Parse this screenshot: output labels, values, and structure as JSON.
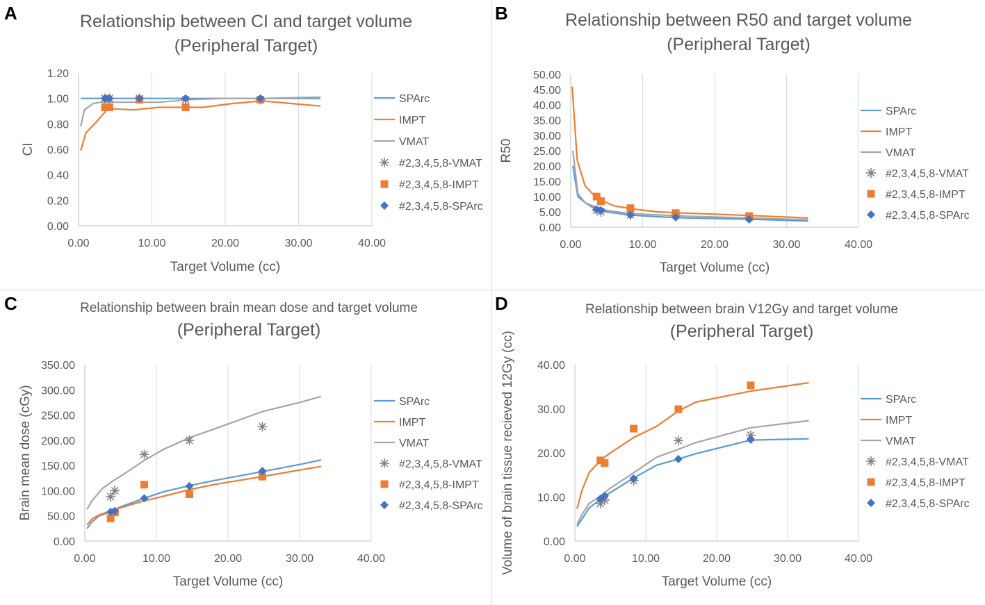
{
  "colors": {
    "spare": "#5b9bd5",
    "impt": "#ed7d31",
    "vmat": "#a5a5a5",
    "marker_vmat": "#808080",
    "marker_impt": "#ed7d31",
    "marker_spare": "#4472c4",
    "grid": "#d9d9d9",
    "axis": "#bfbfbf",
    "text": "#595959",
    "border": "#d9d9d9"
  },
  "chart_data": [
    {
      "id": "A",
      "type": "line",
      "panel_label": "A",
      "title": "Relationship between CI and target volume",
      "subtitle": "(Peripheral Target)",
      "xlabel": "Target Volume (cc)",
      "ylabel": "CI",
      "xlim": [
        0,
        40
      ],
      "ylim": [
        0,
        1.2
      ],
      "xticks": [
        0,
        10,
        20,
        30,
        40
      ],
      "xtick_labels": [
        "0.00",
        "10.00",
        "20.00",
        "30.00",
        "40.00"
      ],
      "yticks": [
        0,
        0.2,
        0.4,
        0.6,
        0.8,
        1.0,
        1.2
      ],
      "ytick_labels": [
        "0.00",
        "0.20",
        "0.40",
        "0.60",
        "0.80",
        "1.00",
        "1.20"
      ],
      "grid": "vertical",
      "series": [
        {
          "name": "SPArc",
          "kind": "line",
          "color": "spare",
          "points": [
            [
              0.3,
              1.0
            ],
            [
              2,
              1.0
            ],
            [
              4,
              1.0
            ],
            [
              8,
              1.0
            ],
            [
              14.5,
              1.0
            ],
            [
              20,
              1.0
            ],
            [
              25,
              1.0
            ],
            [
              33,
              1.0
            ]
          ]
        },
        {
          "name": "IMPT",
          "kind": "line",
          "color": "impt",
          "points": [
            [
              0.3,
              0.59
            ],
            [
              1,
              0.73
            ],
            [
              2.5,
              0.82
            ],
            [
              4,
              0.92
            ],
            [
              7.5,
              0.91
            ],
            [
              11,
              0.93
            ],
            [
              14.5,
              0.93
            ],
            [
              17,
              0.93
            ],
            [
              21,
              0.96
            ],
            [
              25,
              0.98
            ],
            [
              29,
              0.96
            ],
            [
              33,
              0.94
            ]
          ]
        },
        {
          "name": "VMAT",
          "kind": "line",
          "color": "vmat",
          "points": [
            [
              0.3,
              0.78
            ],
            [
              0.8,
              0.91
            ],
            [
              2,
              0.96
            ],
            [
              3,
              0.97
            ],
            [
              5,
              0.97
            ],
            [
              8,
              0.97
            ],
            [
              11,
              0.97
            ],
            [
              15,
              0.99
            ],
            [
              20,
              1.0
            ],
            [
              25,
              1.0
            ],
            [
              33,
              1.01
            ]
          ]
        },
        {
          "name": "#2,3,4,5,8-VMAT",
          "kind": "star",
          "color": "marker_vmat",
          "points": [
            [
              3.6,
              1.0
            ],
            [
              4.2,
              1.0
            ],
            [
              8.3,
              1.0
            ],
            [
              14.6,
              0.99
            ],
            [
              24.8,
              0.99
            ]
          ]
        },
        {
          "name": "#2,3,4,5,8-IMPT",
          "kind": "square",
          "color": "marker_impt",
          "points": [
            [
              3.6,
              0.93
            ],
            [
              4.2,
              0.93
            ],
            [
              8.3,
              0.99
            ],
            [
              14.6,
              0.93
            ],
            [
              24.8,
              0.99
            ]
          ]
        },
        {
          "name": "#2,3,4,5,8-SPArc",
          "kind": "diamond",
          "color": "marker_spare",
          "points": [
            [
              3.6,
              1.0
            ],
            [
              4.2,
              1.0
            ],
            [
              8.3,
              1.0
            ],
            [
              14.6,
              1.0
            ],
            [
              24.8,
              1.0
            ]
          ]
        }
      ]
    },
    {
      "id": "B",
      "type": "line",
      "panel_label": "B",
      "title": "Relationship between R50 and target volume",
      "subtitle": "(Peripheral Target)",
      "xlabel": "Target Volume (cc)",
      "ylabel": "R50",
      "xlim": [
        0,
        40
      ],
      "ylim": [
        0,
        50
      ],
      "xticks": [
        0,
        10,
        20,
        30,
        40
      ],
      "xtick_labels": [
        "0.00",
        "10.00",
        "20.00",
        "30.00",
        "40.00"
      ],
      "yticks": [
        0,
        5,
        10,
        15,
        20,
        25,
        30,
        35,
        40,
        45,
        50
      ],
      "ytick_labels": [
        "0.00",
        "5.00",
        "10.00",
        "15.00",
        "20.00",
        "25.00",
        "30.00",
        "35.00",
        "40.00",
        "45.00",
        "50.00"
      ],
      "grid": "vertical",
      "series": [
        {
          "name": "SPArc",
          "kind": "line",
          "color": "spare",
          "points": [
            [
              0.3,
              20
            ],
            [
              1,
              10
            ],
            [
              2,
              8
            ],
            [
              3,
              6.5
            ],
            [
              5,
              5
            ],
            [
              8,
              4
            ],
            [
              12,
              3.4
            ],
            [
              16,
              3
            ],
            [
              25,
              2.6
            ],
            [
              33,
              2.0
            ]
          ]
        },
        {
          "name": "IMPT",
          "kind": "line",
          "color": "impt",
          "points": [
            [
              0.2,
              46
            ],
            [
              0.9,
              22
            ],
            [
              2,
              13.5
            ],
            [
              3,
              11
            ],
            [
              4,
              9
            ],
            [
              6,
              7
            ],
            [
              8.5,
              6
            ],
            [
              12,
              5
            ],
            [
              16,
              4.6
            ],
            [
              25,
              3.8
            ],
            [
              33,
              3.0
            ]
          ]
        },
        {
          "name": "VMAT",
          "kind": "line",
          "color": "vmat",
          "points": [
            [
              0.3,
              25
            ],
            [
              1,
              11
            ],
            [
              2,
              8
            ],
            [
              3,
              7
            ],
            [
              5,
              5.5
            ],
            [
              8,
              4.5
            ],
            [
              12,
              4
            ],
            [
              16,
              3.6
            ],
            [
              25,
              3.0
            ],
            [
              33,
              2.4
            ]
          ]
        },
        {
          "name": "#2,3,4,5,8-VMAT",
          "kind": "star",
          "color": "marker_vmat",
          "points": [
            [
              3.6,
              5.5
            ],
            [
              4.2,
              5.0
            ],
            [
              8.3,
              4.0
            ],
            [
              14.6,
              4.0
            ],
            [
              24.8,
              3.2
            ]
          ]
        },
        {
          "name": "#2,3,4,5,8-IMPT",
          "kind": "square",
          "color": "marker_impt",
          "points": [
            [
              3.6,
              10.0
            ],
            [
              4.2,
              8.5
            ],
            [
              8.3,
              6.2
            ],
            [
              14.6,
              4.6
            ],
            [
              24.8,
              3.6
            ]
          ]
        },
        {
          "name": "#2,3,4,5,8-SPArc",
          "kind": "diamond",
          "color": "marker_spare",
          "points": [
            [
              3.6,
              5.8
            ],
            [
              4.2,
              5.5
            ],
            [
              8.3,
              4.0
            ],
            [
              14.6,
              3.2
            ],
            [
              24.8,
              2.5
            ]
          ]
        }
      ]
    },
    {
      "id": "C",
      "type": "line",
      "panel_label": "C",
      "title": "Relationship between brain mean dose and target volume",
      "subtitle": "(Peripheral Target)",
      "xlabel": "Target Volume (cc)",
      "ylabel": "Brain mean dose (cGy)",
      "xlim": [
        0,
        40
      ],
      "ylim": [
        0,
        350
      ],
      "xticks": [
        0,
        10,
        20,
        30,
        40
      ],
      "xtick_labels": [
        "0.00",
        "10.00",
        "20.00",
        "30.00",
        "40.00"
      ],
      "yticks": [
        0,
        50,
        100,
        150,
        200,
        250,
        300,
        350
      ],
      "ytick_labels": [
        "0.00",
        "50.00",
        "100.00",
        "150.00",
        "200.00",
        "250.00",
        "300.00",
        "350.00"
      ],
      "grid": "vertical",
      "series": [
        {
          "name": "SPArc",
          "kind": "line",
          "color": "spare",
          "points": [
            [
              0.3,
              25
            ],
            [
              1,
              38
            ],
            [
              2,
              50
            ],
            [
              3.6,
              58
            ],
            [
              5,
              68
            ],
            [
              8.3,
              85
            ],
            [
              11,
              98
            ],
            [
              14.6,
              110
            ],
            [
              18,
              120
            ],
            [
              24.8,
              138
            ],
            [
              30,
              152
            ],
            [
              33,
              161
            ]
          ]
        },
        {
          "name": "IMPT",
          "kind": "line",
          "color": "impt",
          "points": [
            [
              0.3,
              32
            ],
            [
              1,
              44
            ],
            [
              2,
              52
            ],
            [
              3.6,
              60
            ],
            [
              5,
              66
            ],
            [
              8.3,
              80
            ],
            [
              11,
              89
            ],
            [
              14.6,
              102
            ],
            [
              18,
              112
            ],
            [
              24.8,
              128
            ],
            [
              30,
              141
            ],
            [
              33,
              148
            ]
          ]
        },
        {
          "name": "VMAT",
          "kind": "line",
          "color": "vmat",
          "points": [
            [
              0.3,
              63
            ],
            [
              1,
              80
            ],
            [
              2.5,
              105
            ],
            [
              4,
              120
            ],
            [
              6,
              138
            ],
            [
              8.3,
              160
            ],
            [
              11,
              182
            ],
            [
              14.6,
              205
            ],
            [
              18,
              222
            ],
            [
              24.8,
              257
            ],
            [
              30,
              275
            ],
            [
              33,
              287
            ]
          ]
        },
        {
          "name": "#2,3,4,5,8-VMAT",
          "kind": "star",
          "color": "marker_vmat",
          "points": [
            [
              3.6,
              88
            ],
            [
              4.2,
              100
            ],
            [
              8.3,
              172
            ],
            [
              14.6,
              200
            ],
            [
              24.8,
              227
            ]
          ]
        },
        {
          "name": "#2,3,4,5,8-IMPT",
          "kind": "square",
          "color": "marker_impt",
          "points": [
            [
              3.6,
              45
            ],
            [
              4.2,
              57
            ],
            [
              8.3,
              112
            ],
            [
              14.6,
              93
            ],
            [
              24.8,
              128
            ]
          ]
        },
        {
          "name": "#2,3,4,5,8-SPArc",
          "kind": "diamond",
          "color": "marker_spare",
          "points": [
            [
              3.6,
              58
            ],
            [
              4.2,
              60
            ],
            [
              8.3,
              85
            ],
            [
              14.6,
              109
            ],
            [
              24.8,
              139
            ]
          ]
        }
      ]
    },
    {
      "id": "D",
      "type": "line",
      "panel_label": "D",
      "title": "Relationship between brain V12Gy and target volume",
      "subtitle": "(Peripheral Target)",
      "xlabel": "Target Volume (cc)",
      "ylabel": "Volume of brain tissue recieved 12Gy (cc)",
      "xlim": [
        0,
        40
      ],
      "ylim": [
        0,
        40
      ],
      "xticks": [
        0,
        10,
        20,
        30,
        40
      ],
      "xtick_labels": [
        "0.00",
        "10.00",
        "20.00",
        "30.00",
        "40.00"
      ],
      "yticks": [
        0,
        10,
        20,
        30,
        40
      ],
      "ytick_labels": [
        "0.00",
        "10.00",
        "20.00",
        "30.00",
        "40.00"
      ],
      "grid": "vertical",
      "series": [
        {
          "name": "SPArc",
          "kind": "line",
          "color": "spare",
          "points": [
            [
              0.3,
              3.3
            ],
            [
              1,
              5
            ],
            [
              2,
              7.5
            ],
            [
              3.6,
              9.5
            ],
            [
              5,
              11
            ],
            [
              8.3,
              14.3
            ],
            [
              11.5,
              17.2
            ],
            [
              14.6,
              18.6
            ],
            [
              17,
              19.8
            ],
            [
              24.8,
              22.9
            ],
            [
              33,
              23.2
            ]
          ]
        },
        {
          "name": "IMPT",
          "kind": "line",
          "color": "impt",
          "points": [
            [
              0.3,
              7.3
            ],
            [
              1,
              11.5
            ],
            [
              2,
              15.5
            ],
            [
              3.6,
              18.3
            ],
            [
              5,
              20
            ],
            [
              8.3,
              23.5
            ],
            [
              11.5,
              26
            ],
            [
              14.6,
              29.5
            ],
            [
              17,
              31.5
            ],
            [
              24.8,
              34
            ],
            [
              33,
              35.9
            ]
          ]
        },
        {
          "name": "VMAT",
          "kind": "line",
          "color": "vmat",
          "points": [
            [
              0.3,
              3.8
            ],
            [
              1,
              6
            ],
            [
              2,
              8.5
            ],
            [
              3.6,
              10.2
            ],
            [
              5,
              12
            ],
            [
              8.3,
              15.5
            ],
            [
              11.5,
              19
            ],
            [
              14.6,
              20.8
            ],
            [
              17,
              22.3
            ],
            [
              24.8,
              25.7
            ],
            [
              33,
              27.3
            ]
          ]
        },
        {
          "name": "#2,3,4,5,8-VMAT",
          "kind": "star",
          "color": "marker_vmat",
          "points": [
            [
              3.6,
              8.5
            ],
            [
              4.2,
              9.3
            ],
            [
              8.3,
              13.7
            ],
            [
              14.6,
              22.8
            ],
            [
              24.8,
              24.0
            ]
          ]
        },
        {
          "name": "#2,3,4,5,8-IMPT",
          "kind": "square",
          "color": "marker_impt",
          "points": [
            [
              3.6,
              18.3
            ],
            [
              4.2,
              17.7
            ],
            [
              8.3,
              25.5
            ],
            [
              14.6,
              29.9
            ],
            [
              24.8,
              35.3
            ]
          ]
        },
        {
          "name": "#2,3,4,5,8-SPArc",
          "kind": "diamond",
          "color": "marker_spare",
          "points": [
            [
              3.6,
              9.6
            ],
            [
              4.2,
              10.3
            ],
            [
              8.3,
              14.2
            ],
            [
              14.6,
              18.6
            ],
            [
              24.8,
              23.0
            ]
          ]
        }
      ]
    }
  ]
}
